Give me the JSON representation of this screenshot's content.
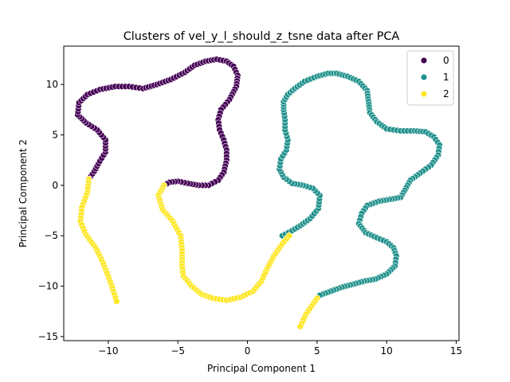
{
  "chart_data": {
    "type": "scatter",
    "title": "Clusters of vel_y_l_should_z_tsne data after PCA",
    "xlabel": "Principal Component 1",
    "ylabel": "Principal Component 2",
    "xlim": [
      -13.2,
      15.2
    ],
    "ylim": [
      -15.4,
      13.8
    ],
    "xticks": [
      -10,
      -5,
      0,
      5,
      10,
      15
    ],
    "yticks": [
      -15,
      -10,
      -5,
      0,
      5,
      10
    ],
    "grid": false,
    "legend": {
      "placement": "top-right",
      "entries": [
        "0",
        "1",
        "2"
      ]
    },
    "series": [
      {
        "name": "0",
        "color": "#440154",
        "segments": [
          [
            [
              -11.4,
              0.6
            ],
            [
              -11.0,
              1.4
            ],
            [
              -10.6,
              2.4
            ],
            [
              -10.2,
              3.3
            ],
            [
              -10.2,
              4.5
            ],
            [
              -10.8,
              5.5
            ],
            [
              -11.6,
              6.2
            ],
            [
              -12.2,
              7.0
            ],
            [
              -12.1,
              8.2
            ],
            [
              -11.5,
              9.0
            ],
            [
              -10.6,
              9.5
            ],
            [
              -9.5,
              9.8
            ],
            [
              -8.5,
              9.8
            ],
            [
              -7.5,
              9.6
            ],
            [
              -6.5,
              10.0
            ],
            [
              -5.5,
              10.5
            ],
            [
              -4.5,
              11.2
            ],
            [
              -3.8,
              11.9
            ],
            [
              -3.0,
              12.3
            ],
            [
              -2.2,
              12.5
            ],
            [
              -1.5,
              12.3
            ],
            [
              -1.0,
              11.8
            ],
            [
              -0.7,
              10.9
            ],
            [
              -0.8,
              9.8
            ],
            [
              -1.3,
              8.5
            ],
            [
              -1.9,
              7.5
            ],
            [
              -2.1,
              6.5
            ],
            [
              -2.0,
              5.5
            ],
            [
              -1.7,
              4.5
            ],
            [
              -1.5,
              3.5
            ],
            [
              -1.5,
              2.5
            ],
            [
              -1.7,
              1.3
            ],
            [
              -2.1,
              0.5
            ],
            [
              -2.8,
              0.0
            ],
            [
              -3.5,
              0.0
            ],
            [
              -4.3,
              0.2
            ],
            [
              -5.0,
              0.4
            ],
            [
              -5.6,
              0.3
            ],
            [
              -6.0,
              0.0
            ]
          ]
        ]
      },
      {
        "name": "1",
        "color": "#21918c",
        "segments": [
          [
            [
              2.5,
              -5.0
            ],
            [
              3.2,
              -4.5
            ],
            [
              3.8,
              -4.0
            ],
            [
              4.5,
              -3.3
            ],
            [
              5.1,
              -2.3
            ],
            [
              5.2,
              -1.0
            ],
            [
              4.7,
              -0.3
            ],
            [
              4.0,
              0.0
            ],
            [
              3.2,
              0.2
            ],
            [
              2.6,
              0.8
            ],
            [
              2.3,
              1.6
            ],
            [
              2.4,
              2.6
            ],
            [
              2.8,
              3.5
            ],
            [
              2.9,
              4.5
            ],
            [
              2.7,
              5.5
            ],
            [
              2.7,
              6.5
            ],
            [
              2.6,
              7.5
            ],
            [
              2.6,
              8.3
            ],
            [
              2.9,
              9.0
            ],
            [
              3.4,
              9.6
            ],
            [
              4.1,
              10.3
            ],
            [
              5.0,
              10.8
            ],
            [
              5.8,
              11.1
            ],
            [
              6.4,
              11.1
            ]
          ],
          [
            [
              6.4,
              11.1
            ],
            [
              7.2,
              10.8
            ],
            [
              8.0,
              10.3
            ],
            [
              8.6,
              9.4
            ],
            [
              8.7,
              8.3
            ],
            [
              8.8,
              7.2
            ],
            [
              9.3,
              6.3
            ],
            [
              10.0,
              5.6
            ],
            [
              11.0,
              5.4
            ],
            [
              12.0,
              5.4
            ],
            [
              12.8,
              5.3
            ],
            [
              13.4,
              4.8
            ],
            [
              13.8,
              4.0
            ],
            [
              13.7,
              3.0
            ],
            [
              13.2,
              2.0
            ],
            [
              12.4,
              1.2
            ],
            [
              11.7,
              0.5
            ],
            [
              11.3,
              -0.5
            ],
            [
              11.0,
              -1.2
            ],
            [
              10.2,
              -1.4
            ],
            [
              9.4,
              -1.6
            ],
            [
              8.6,
              -2.0
            ],
            [
              8.2,
              -2.8
            ],
            [
              8.0,
              -3.8
            ],
            [
              8.5,
              -4.7
            ],
            [
              9.3,
              -5.2
            ],
            [
              10.0,
              -5.6
            ],
            [
              10.5,
              -6.2
            ],
            [
              10.7,
              -7.0
            ],
            [
              10.6,
              -8.0
            ],
            [
              10.0,
              -8.8
            ],
            [
              9.2,
              -9.3
            ],
            [
              8.4,
              -9.5
            ],
            [
              7.6,
              -9.8
            ],
            [
              6.8,
              -10.1
            ],
            [
              6.0,
              -10.5
            ],
            [
              5.2,
              -10.9
            ],
            [
              5.0,
              -11.2
            ]
          ]
        ]
      },
      {
        "name": "2",
        "color": "#fde725",
        "segments": [
          [
            [
              -11.4,
              0.6
            ],
            [
              -11.5,
              -0.7
            ],
            [
              -11.9,
              -2.2
            ],
            [
              -12.0,
              -3.6
            ],
            [
              -11.6,
              -4.9
            ],
            [
              -10.9,
              -6.2
            ],
            [
              -10.4,
              -7.6
            ],
            [
              -10.0,
              -9.0
            ],
            [
              -9.7,
              -10.2
            ],
            [
              -9.4,
              -11.5
            ]
          ],
          [
            [
              -6.0,
              0.0
            ],
            [
              -6.4,
              -1.0
            ],
            [
              -6.1,
              -2.4
            ],
            [
              -5.4,
              -3.5
            ],
            [
              -4.8,
              -5.0
            ],
            [
              -4.7,
              -6.5
            ],
            [
              -4.7,
              -8.0
            ],
            [
              -4.6,
              -9.0
            ],
            [
              -4.0,
              -10.0
            ],
            [
              -3.3,
              -10.8
            ],
            [
              -2.5,
              -11.2
            ],
            [
              -1.5,
              -11.4
            ],
            [
              -0.5,
              -11.1
            ],
            [
              0.4,
              -10.5
            ],
            [
              1.0,
              -9.5
            ],
            [
              1.4,
              -8.3
            ],
            [
              1.9,
              -7.0
            ],
            [
              2.5,
              -5.8
            ],
            [
              3.0,
              -5.0
            ]
          ],
          [
            [
              5.0,
              -11.2
            ],
            [
              4.6,
              -12.0
            ],
            [
              4.2,
              -12.8
            ],
            [
              3.8,
              -14.0
            ]
          ]
        ]
      }
    ]
  }
}
